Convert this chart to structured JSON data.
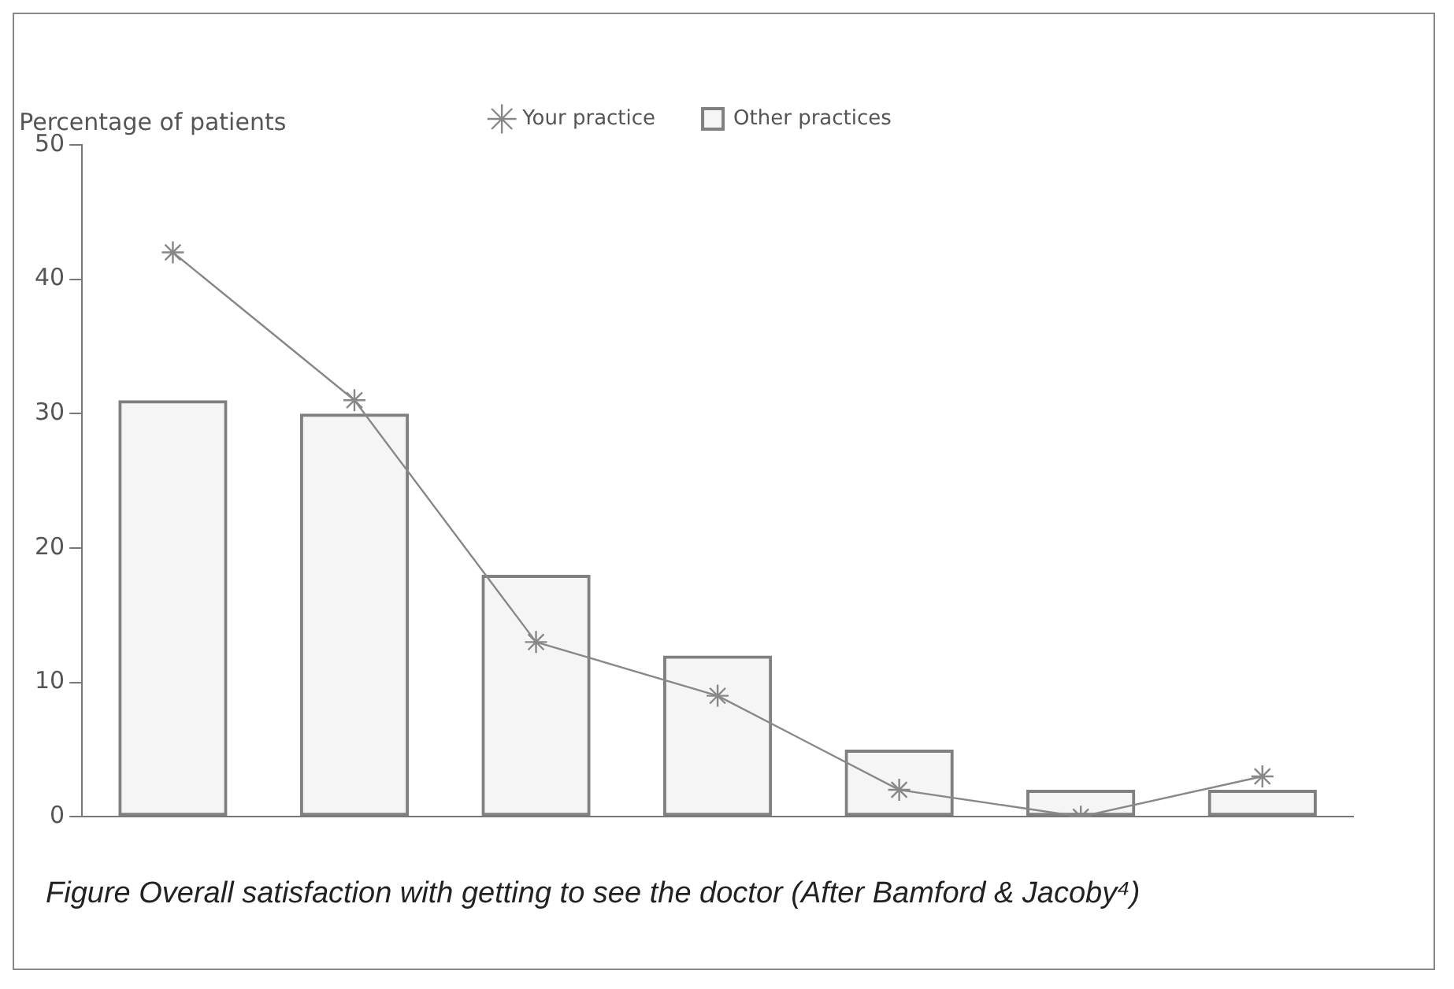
{
  "chart_data": {
    "type": "bar",
    "ylabel": "Percentage of patients",
    "categories": [
      null,
      null,
      null,
      null,
      null,
      null,
      null
    ],
    "series": [
      {
        "name": "Your practice",
        "type": "line",
        "color": "#888888",
        "values": [
          42,
          31,
          13,
          9,
          2,
          0,
          3
        ]
      },
      {
        "name": "Other practices",
        "color": "#808080",
        "values": [
          31,
          30,
          18,
          12,
          5,
          2,
          2
        ]
      }
    ],
    "ylim": [
      0,
      50
    ],
    "yticks": [
      0,
      10,
      20,
      30,
      40,
      50
    ],
    "legend": "top",
    "marker": "cross",
    "line_style": "solid",
    "annotations": [
      "Figure Overall satisfaction with getting to see the doctor (After Bamford & Jacoby⁴)"
    ]
  }
}
